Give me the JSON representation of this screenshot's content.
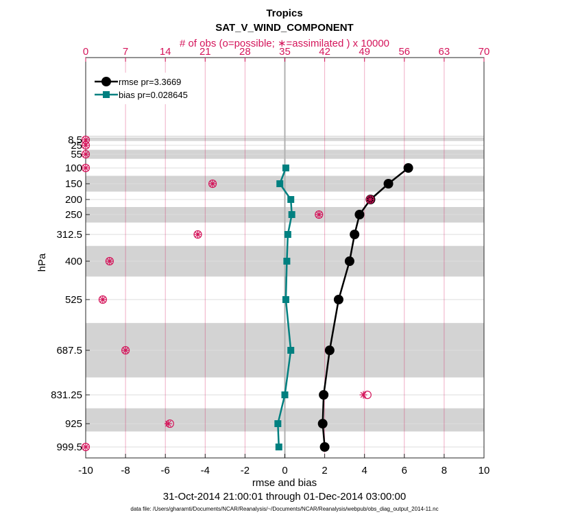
{
  "chart_data": {
    "type": "line",
    "title": "Tropics",
    "subtitle": "SAT_V_WIND_COMPONENT",
    "xlabel": "rmse and bias",
    "ylabel": "hPa",
    "x2label": "# of obs (o=possible; ∗=assimilated ) x 10000",
    "date_range": "31-Oct-2014 21:00:01 through 01-Dec-2014 03:00:00",
    "footnote": "data file: /Users/gharamti/Documents/NCAR/Reanalysis/~/Documents/NCAR/Reanalysis/webpub/obs_diag_output_2014-11.nc",
    "xlim": [
      -10,
      10
    ],
    "x2lim": [
      0,
      70
    ],
    "xticks": [
      "-10",
      "-8",
      "-6",
      "-4",
      "-2",
      "0",
      "2",
      "4",
      "6",
      "8",
      "10"
    ],
    "x2ticks": [
      "0",
      "7",
      "14",
      "21",
      "28",
      "35",
      "42",
      "49",
      "56",
      "63",
      "70"
    ],
    "levels": [
      8.5,
      25,
      55,
      100,
      150,
      200,
      250,
      312.5,
      400,
      525,
      687.5,
      831.25,
      925,
      999.5
    ],
    "level_labels": [
      "8.5",
      "25",
      "55",
      "100",
      "150",
      "200",
      "250",
      "312.5",
      "400",
      "525",
      "687.5",
      "831.25",
      "925",
      "999.5"
    ],
    "shaded_bands": [
      [
        5,
        12
      ],
      [
        40,
        70
      ],
      [
        125,
        175
      ],
      [
        225,
        275
      ],
      [
        350,
        450
      ],
      [
        600,
        775
      ],
      [
        875,
        950
      ]
    ],
    "series": [
      {
        "name": "rmse",
        "legend": "rmse pr=3.3669",
        "color": "#000000",
        "levels": [
          100,
          150,
          200,
          250,
          312.5,
          400,
          525,
          687.5,
          831.25,
          925,
          999.5
        ],
        "values": [
          6.2,
          5.2,
          4.3,
          3.75,
          3.5,
          3.25,
          2.7,
          2.25,
          1.95,
          1.9,
          2.0
        ]
      },
      {
        "name": "bias",
        "legend": "bias pr=0.028645",
        "color": "#008080",
        "levels": [
          100,
          150,
          200,
          250,
          312.5,
          400,
          525,
          687.5,
          831.25,
          925,
          999.5
        ],
        "values": [
          0.05,
          -0.25,
          0.3,
          0.35,
          0.15,
          0.1,
          0.05,
          0.3,
          0.0,
          -0.35,
          -0.3
        ]
      }
    ],
    "obs_possible": {
      "levels": [
        8.5,
        25,
        55,
        100,
        150,
        200,
        250,
        312.5,
        400,
        525,
        687.5,
        831.25,
        925,
        999.5
      ],
      "values": [
        0,
        0,
        0,
        0,
        22.3,
        50,
        41,
        19.7,
        4.2,
        3,
        7,
        49.5,
        14.8,
        0
      ]
    },
    "obs_assimilated": {
      "levels": [
        8.5,
        25,
        55,
        100,
        150,
        200,
        250,
        312.5,
        400,
        525,
        687.5,
        831.25,
        925,
        999.5
      ],
      "values": [
        0,
        0,
        0,
        0,
        22.3,
        50,
        41,
        19.7,
        4.2,
        3,
        7,
        48.8,
        14.5,
        0
      ]
    }
  }
}
